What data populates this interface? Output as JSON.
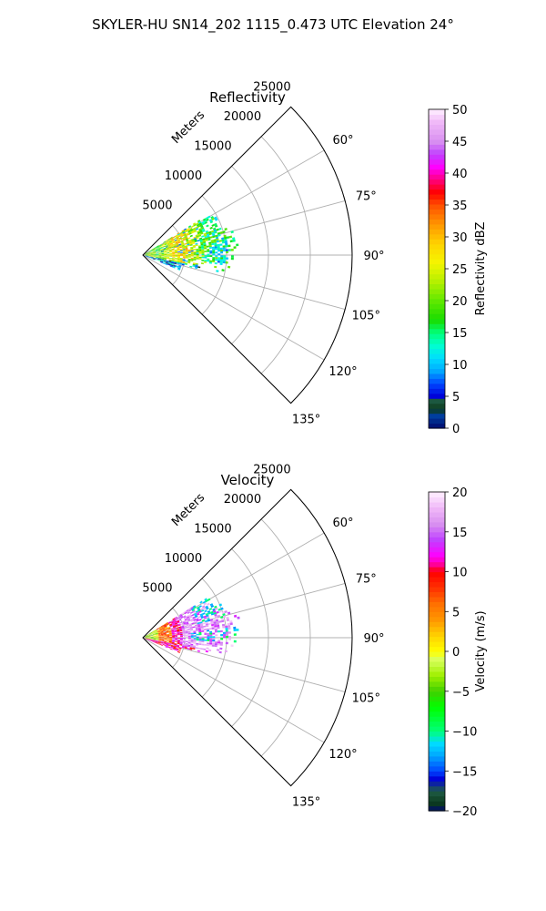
{
  "figure_title": "SKYLER-HU  SN14_202  1115_0.473 UTC Elevation 24°",
  "colors": {
    "grid": "#b0b0b0",
    "frame": "#000000",
    "background": "#ffffff"
  },
  "chart_data": [
    {
      "type": "polar-sector",
      "title": "Reflectivity",
      "radial_label": "Meters",
      "r_ticks": [
        5000,
        10000,
        15000,
        20000,
        25000
      ],
      "r_max": 25000,
      "theta_ticks_deg": [
        60,
        75,
        90,
        105,
        120,
        135
      ],
      "theta_tick_labels": [
        "60°",
        "75°",
        "90°",
        "105°",
        "120°",
        "135°"
      ],
      "theta_range_deg": [
        45,
        135
      ],
      "colorbar": {
        "label": "Reflectivity dBZ",
        "vmin": 0,
        "vmax": 50,
        "ticks": [
          0,
          5,
          10,
          15,
          20,
          25,
          30,
          35,
          40,
          45,
          50
        ],
        "colormap": "pyart_NWSRef"
      },
      "echo_region": {
        "azimuth_range_deg": [
          58,
          112
        ],
        "range_max_m": 12000,
        "typical_values": [
          12,
          22,
          28,
          18,
          8
        ]
      }
    },
    {
      "type": "polar-sector",
      "title": "Velocity",
      "radial_label": "Meters",
      "r_ticks": [
        5000,
        10000,
        15000,
        20000,
        25000
      ],
      "r_max": 25000,
      "theta_ticks_deg": [
        60,
        75,
        90,
        105,
        120,
        135
      ],
      "theta_tick_labels": [
        "60°",
        "75°",
        "90°",
        "105°",
        "120°",
        "135°"
      ],
      "theta_range_deg": [
        45,
        135
      ],
      "colorbar": {
        "label": "Velocity (m/s)",
        "vmin": -20,
        "vmax": 20,
        "ticks": [
          -20,
          -15,
          -10,
          -5,
          0,
          5,
          10,
          15,
          20
        ],
        "colormap": "pyart_NWSVel"
      },
      "echo_region": {
        "azimuth_range_deg": [
          58,
          112
        ],
        "range_max_m": 12000,
        "typical_values": [
          -5,
          3,
          10,
          15,
          -13
        ]
      }
    }
  ]
}
